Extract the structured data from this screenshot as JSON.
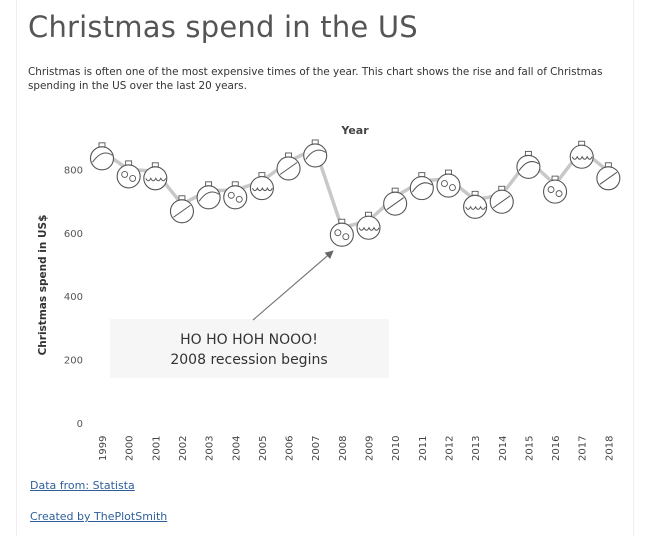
{
  "page": {
    "title": "Christmas spend in the US",
    "subtitle": "Christmas is often one of the most expensive times of the year. This chart shows the rise and fall of Christmas spending in the US over the last 20 years.",
    "source_link": "Data from: Statista",
    "credit_link": "Created by ThePlotSmith"
  },
  "chart_data": {
    "type": "line",
    "title": "",
    "xlabel": "Year",
    "ylabel": "Christmas spend in US$",
    "x": [
      "1999",
      "2000",
      "2001",
      "2002",
      "2003",
      "2004",
      "2005",
      "2006",
      "2007",
      "2008",
      "2009",
      "2010",
      "2011",
      "2012",
      "2013",
      "2014",
      "2015",
      "2016",
      "2017",
      "2018"
    ],
    "series": [
      {
        "values": [
          857,
          800,
          794,
          690,
          734,
          734,
          763,
          825,
          866,
          616,
          638,
          714,
          763,
          771,
          704,
          720,
          830,
          752,
          862,
          794
        ]
      }
    ],
    "yticks": [
      "0",
      "200",
      "400",
      "600",
      "800"
    ],
    "ylim": [
      0,
      1000
    ],
    "grid": false,
    "line_color": "#c8c8c8",
    "marker": "christmas-bauble-ornament",
    "annotation": {
      "text_line1": "HO HO HOH NOOO!",
      "text_line2": "2008 recession begins",
      "target_x": "2008"
    }
  }
}
